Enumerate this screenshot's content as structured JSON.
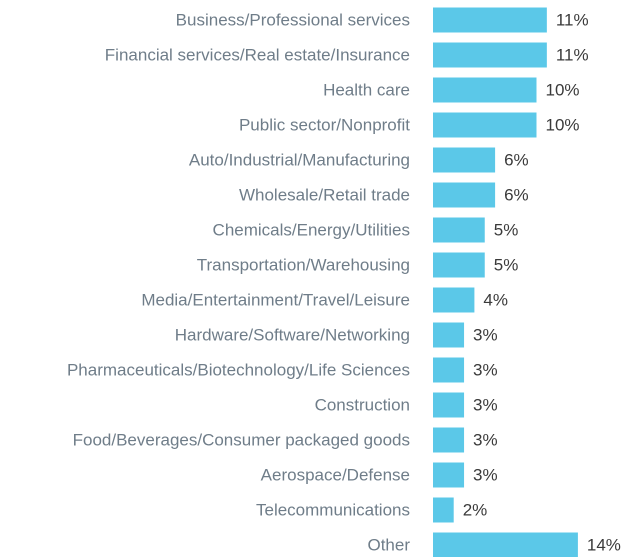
{
  "chart_data": {
    "type": "bar",
    "orientation": "horizontal",
    "color": "#5bc8e8",
    "categories": [
      "Business/Professional services",
      "Financial services/Real estate/Insurance",
      "Health care",
      "Public sector/Nonprofit",
      "Auto/Industrial/Manufacturing",
      "Wholesale/Retail trade",
      "Chemicals/Energy/Utilities",
      "Transportation/Warehousing",
      "Media/Entertainment/Travel/Leisure",
      "Hardware/Software/Networking",
      "Pharmaceuticals/Biotechnology/Life Sciences",
      "Construction",
      "Food/Beverages/Consumer packaged goods",
      "Aerospace/Defense",
      "Telecommunications",
      "Other"
    ],
    "values": [
      11,
      11,
      10,
      10,
      6,
      6,
      5,
      5,
      4,
      3,
      3,
      3,
      3,
      3,
      2,
      14
    ],
    "value_labels": [
      "11%",
      "11%",
      "10%",
      "10%",
      "6%",
      "6%",
      "5%",
      "5%",
      "4%",
      "3%",
      "3%",
      "3%",
      "3%",
      "3%",
      "2%",
      "14%"
    ]
  }
}
